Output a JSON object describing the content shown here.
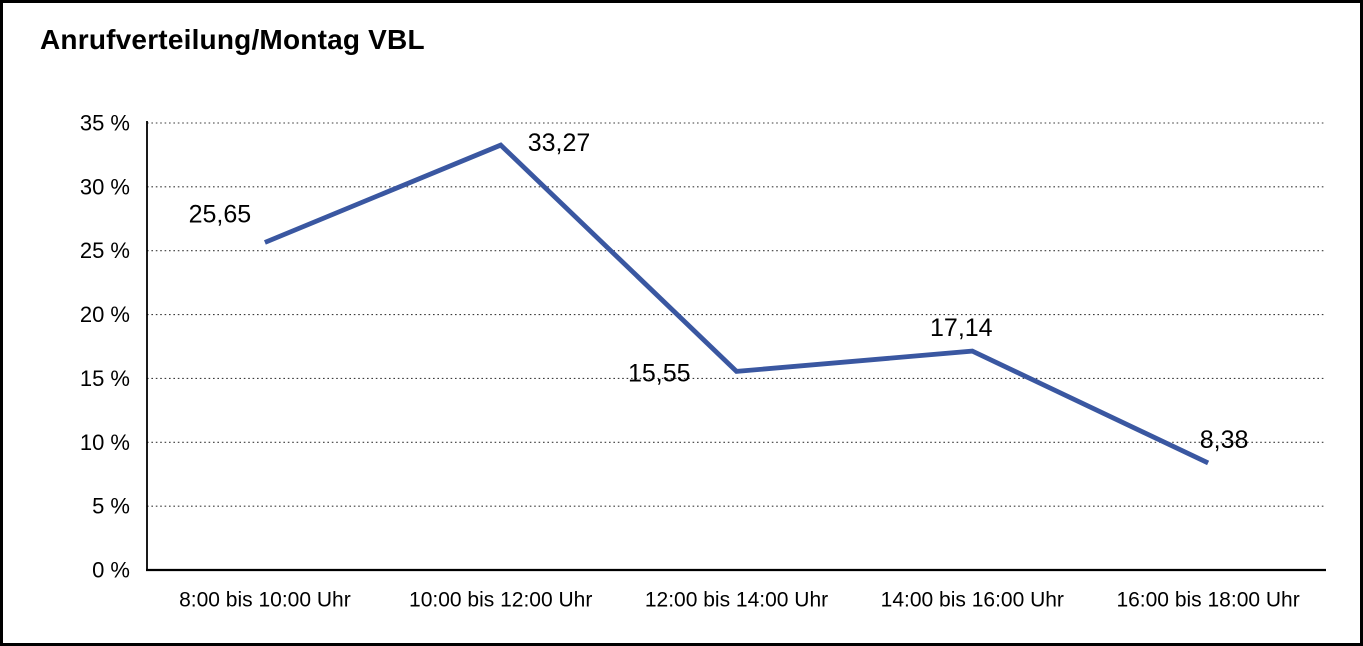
{
  "page": {
    "title": "Anrufverteilung/Montag VBL"
  },
  "chart_data": {
    "type": "line",
    "title": "Anrufverteilung/Montag VBL",
    "categories": [
      "8:00 bis 10:00 Uhr",
      "10:00 bis 12:00 Uhr",
      "12:00 bis 14:00 Uhr",
      "14:00 bis 16:00 Uhr",
      "16:00 bis 18:00 Uhr"
    ],
    "values": [
      25.65,
      33.27,
      15.55,
      17.14,
      8.38
    ],
    "point_labels": [
      "25,65",
      "33,27",
      "15,55",
      "17,14",
      "8,38"
    ],
    "xlabel": "",
    "ylabel": "",
    "ylim": [
      0,
      35
    ],
    "y_tick_step": 5,
    "y_tick_labels": [
      "0 %",
      "5 %",
      "10 %",
      "15 %",
      "20 %",
      "25 %",
      "30 %",
      "35 %"
    ],
    "grid": "horizontal-dotted",
    "legend": "none",
    "colors": {
      "line": "#3A57A1",
      "axis": "#000000",
      "gridline": "#3c3c3c",
      "text": "#000000",
      "background": "#FFFFFF",
      "frame": "#000000"
    }
  }
}
